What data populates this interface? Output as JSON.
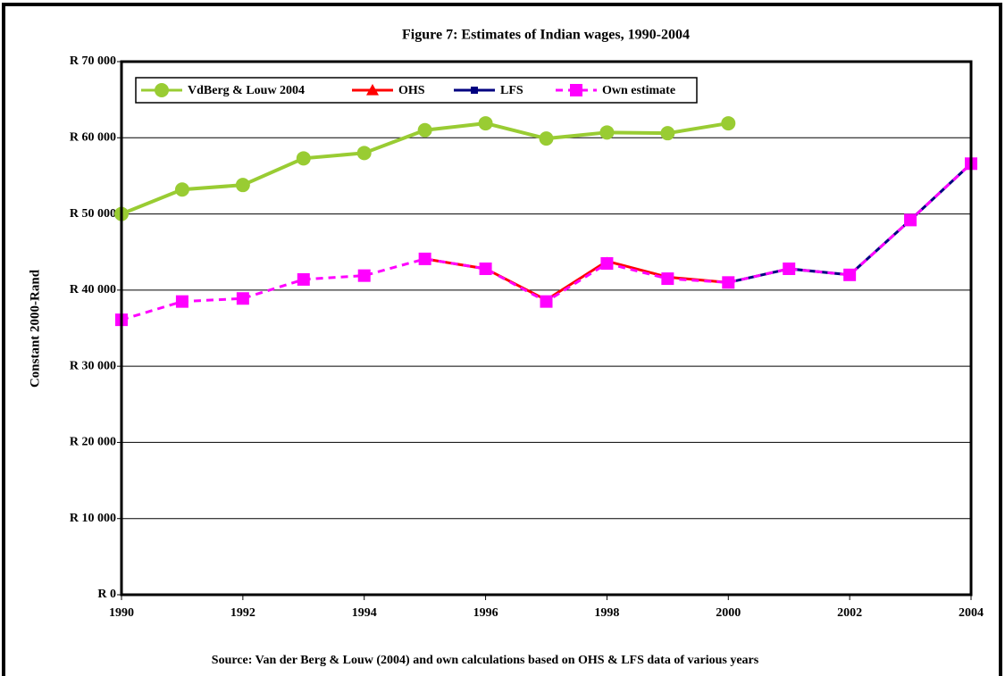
{
  "chart_data": {
    "type": "line",
    "title": "Figure 7: Estimates of Indian wages, 1990-2004",
    "y_label": "Constant 2000-Rand",
    "source": "Source: Van der Berg & Louw (2004) and own calculations based on OHS & LFS data of various years",
    "x": [
      1990,
      1991,
      1992,
      1993,
      1994,
      1995,
      1996,
      1997,
      1998,
      1999,
      2000,
      2001,
      2002,
      2003,
      2004
    ],
    "xlim": [
      1990,
      2004
    ],
    "xticks": [
      1990,
      1992,
      1994,
      1996,
      1998,
      2000,
      2002,
      2004
    ],
    "ylim": [
      0,
      70000
    ],
    "yticks": [
      {
        "value": 0,
        "label": "R 0"
      },
      {
        "value": 10000,
        "label": "R 10 000"
      },
      {
        "value": 20000,
        "label": "R 20 000"
      },
      {
        "value": 30000,
        "label": "R 30 000"
      },
      {
        "value": 40000,
        "label": "R 40 000"
      },
      {
        "value": 50000,
        "label": "R 50 000"
      },
      {
        "value": 60000,
        "label": "R 60 000"
      },
      {
        "value": 70000,
        "label": "R 70 000"
      }
    ],
    "grid": true,
    "legend": "top-left",
    "series": [
      {
        "name": "VdBerg & Louw 2004",
        "color": "#99cc33",
        "marker": "circle",
        "dash": false,
        "values": [
          50000,
          53200,
          53800,
          57300,
          58000,
          61000,
          61900,
          59900,
          60700,
          60600,
          61900,
          null,
          null,
          null,
          null
        ]
      },
      {
        "name": "OHS",
        "color": "#ff0000",
        "marker": "triangle",
        "dash": false,
        "values": [
          null,
          null,
          null,
          null,
          null,
          44100,
          42800,
          38700,
          43800,
          41700,
          41000,
          null,
          null,
          null,
          null
        ]
      },
      {
        "name": "LFS",
        "color": "#000080",
        "marker": "square",
        "dash": false,
        "values": [
          null,
          null,
          null,
          null,
          null,
          null,
          null,
          null,
          null,
          null,
          41000,
          42800,
          42000,
          49200,
          56600
        ]
      },
      {
        "name": "Own estimate",
        "color": "#ff00ff",
        "marker": "square",
        "dash": true,
        "values": [
          36100,
          38500,
          38900,
          41400,
          41900,
          44100,
          42800,
          38500,
          43500,
          41500,
          41000,
          42800,
          42000,
          49200,
          56600
        ]
      }
    ]
  }
}
